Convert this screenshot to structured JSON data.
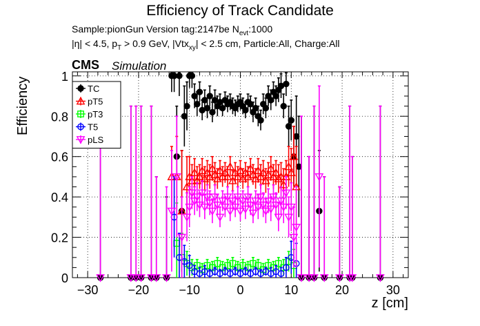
{
  "header": {
    "title": "Efficiency of Track Candidate",
    "sample_line": "Sample:pionGun   Version tag:2147be  N",
    "sample_sub": "evt",
    "sample_tail": ":1000",
    "cuts_line": "|η| < 4.5, p",
    "cuts_sub1": "T",
    "cuts_mid": " > 0.9 GeV, |Vtx",
    "cuts_sub2": "xy",
    "cuts_tail": "| < 2.5 cm, Particle:All, Charge:All",
    "cms": "CMS",
    "simulation": "Simulation"
  },
  "chart_data": {
    "type": "scatter",
    "xlabel": "z [cm]",
    "ylabel": "Efficiency",
    "xlim": [
      -33,
      33
    ],
    "ylim": [
      0,
      1.02
    ],
    "x_ticks": [
      -30,
      -20,
      -10,
      0,
      10,
      20,
      30
    ],
    "y_ticks": [
      0,
      0.2,
      0.4,
      0.6,
      0.8,
      1
    ],
    "grid": true,
    "legend_position": "top-left",
    "series": [
      {
        "name": "TC",
        "color": "#000000",
        "marker": "filled-circle",
        "points": [
          [
            -27.5,
            0,
            0.85
          ],
          [
            -21.5,
            0,
            0.85
          ],
          [
            -20.5,
            0,
            0.85
          ],
          [
            -19.5,
            0,
            0.85
          ],
          [
            -17.5,
            0,
            0.85
          ],
          [
            -16.5,
            0,
            0.5
          ],
          [
            -14.5,
            0,
            0.4
          ],
          [
            -13.5,
            1.0,
            0.08
          ],
          [
            -13.0,
            1.0,
            0.08
          ],
          [
            -12.5,
            0.6,
            0.25
          ],
          [
            -12.0,
            1.0,
            0.1
          ],
          [
            -11.5,
            0.33,
            0.3
          ],
          [
            -11.0,
            0.8,
            0.15
          ],
          [
            -10.5,
            0.85,
            0.12
          ],
          [
            -10.0,
            1.0,
            0.06
          ],
          [
            -9.5,
            1.0,
            0.06
          ],
          [
            -9.0,
            0.9,
            0.06
          ],
          [
            -8.5,
            0.86,
            0.06
          ],
          [
            -8.0,
            0.92,
            0.05
          ],
          [
            -7.5,
            0.83,
            0.05
          ],
          [
            -7.0,
            0.88,
            0.05
          ],
          [
            -6.5,
            0.84,
            0.05
          ],
          [
            -6.0,
            0.9,
            0.05
          ],
          [
            -5.5,
            0.82,
            0.05
          ],
          [
            -5.0,
            0.88,
            0.05
          ],
          [
            -4.5,
            0.85,
            0.05
          ],
          [
            -4.0,
            0.87,
            0.04
          ],
          [
            -3.5,
            0.84,
            0.04
          ],
          [
            -3.0,
            0.88,
            0.04
          ],
          [
            -2.5,
            0.86,
            0.04
          ],
          [
            -2.0,
            0.87,
            0.04
          ],
          [
            -1.5,
            0.85,
            0.04
          ],
          [
            -1.0,
            0.84,
            0.04
          ],
          [
            -0.5,
            0.86,
            0.04
          ],
          [
            0.0,
            0.87,
            0.04
          ],
          [
            0.5,
            0.85,
            0.04
          ],
          [
            1.0,
            0.83,
            0.04
          ],
          [
            1.5,
            0.87,
            0.04
          ],
          [
            2.0,
            0.86,
            0.04
          ],
          [
            2.5,
            0.82,
            0.05
          ],
          [
            3.0,
            0.84,
            0.05
          ],
          [
            3.5,
            0.8,
            0.05
          ],
          [
            4.0,
            0.78,
            0.05
          ],
          [
            4.5,
            0.86,
            0.05
          ],
          [
            5.0,
            0.84,
            0.05
          ],
          [
            5.5,
            0.9,
            0.05
          ],
          [
            6.0,
            0.88,
            0.05
          ],
          [
            6.5,
            0.92,
            0.05
          ],
          [
            7.0,
            0.9,
            0.05
          ],
          [
            7.5,
            0.93,
            0.06
          ],
          [
            8.0,
            0.95,
            0.06
          ],
          [
            8.5,
            0.85,
            0.06
          ],
          [
            9.0,
            0.96,
            0.06
          ],
          [
            9.5,
            0.75,
            0.1
          ],
          [
            10.0,
            0.78,
            0.1
          ],
          [
            10.5,
            0.6,
            0.15
          ],
          [
            11.0,
            0.7,
            0.2
          ],
          [
            11.5,
            0.55,
            0.25
          ],
          [
            12.0,
            0,
            0.8
          ],
          [
            13.5,
            0,
            0.6
          ],
          [
            14.5,
            0,
            0.85
          ],
          [
            15.5,
            0.33,
            0.3
          ],
          [
            16.5,
            0,
            0.5
          ],
          [
            19.5,
            0,
            0.45
          ],
          [
            21.5,
            0,
            0.85
          ],
          [
            22.0,
            0,
            0.6
          ],
          [
            27.5,
            0,
            0.85
          ]
        ]
      },
      {
        "name": "pT5",
        "color": "#ff0000",
        "marker": "open-triangle",
        "points": [
          [
            -13.5,
            0.5,
            0.15
          ],
          [
            -12.5,
            0.5,
            0.2
          ],
          [
            -11.5,
            0.33,
            0.3
          ],
          [
            -10.5,
            0.45,
            0.15
          ],
          [
            -10.0,
            0.5,
            0.1
          ],
          [
            -9.5,
            0.48,
            0.08
          ],
          [
            -9.0,
            0.52,
            0.07
          ],
          [
            -8.5,
            0.48,
            0.07
          ],
          [
            -8.0,
            0.5,
            0.06
          ],
          [
            -7.5,
            0.53,
            0.06
          ],
          [
            -7.0,
            0.49,
            0.06
          ],
          [
            -6.5,
            0.52,
            0.06
          ],
          [
            -6.0,
            0.5,
            0.06
          ],
          [
            -5.5,
            0.54,
            0.06
          ],
          [
            -5.0,
            0.51,
            0.06
          ],
          [
            -4.5,
            0.49,
            0.05
          ],
          [
            -4.0,
            0.53,
            0.05
          ],
          [
            -3.5,
            0.5,
            0.05
          ],
          [
            -3.0,
            0.52,
            0.05
          ],
          [
            -2.5,
            0.5,
            0.05
          ],
          [
            -2.0,
            0.55,
            0.05
          ],
          [
            -1.5,
            0.48,
            0.05
          ],
          [
            -1.0,
            0.52,
            0.05
          ],
          [
            -0.5,
            0.5,
            0.05
          ],
          [
            0.0,
            0.53,
            0.05
          ],
          [
            0.5,
            0.49,
            0.05
          ],
          [
            1.0,
            0.52,
            0.05
          ],
          [
            1.5,
            0.5,
            0.05
          ],
          [
            2.0,
            0.54,
            0.05
          ],
          [
            2.5,
            0.51,
            0.05
          ],
          [
            3.0,
            0.49,
            0.05
          ],
          [
            3.5,
            0.53,
            0.06
          ],
          [
            4.0,
            0.5,
            0.06
          ],
          [
            4.5,
            0.52,
            0.06
          ],
          [
            5.0,
            0.48,
            0.06
          ],
          [
            5.5,
            0.51,
            0.06
          ],
          [
            6.0,
            0.54,
            0.06
          ],
          [
            6.5,
            0.5,
            0.06
          ],
          [
            7.0,
            0.52,
            0.06
          ],
          [
            7.5,
            0.49,
            0.07
          ],
          [
            8.0,
            0.5,
            0.07
          ],
          [
            8.5,
            0.46,
            0.08
          ],
          [
            9.0,
            0.5,
            0.08
          ],
          [
            9.5,
            0.55,
            0.1
          ],
          [
            10.0,
            0.52,
            0.12
          ],
          [
            10.5,
            0.6,
            0.15
          ],
          [
            11.0,
            0.45,
            0.2
          ]
        ]
      },
      {
        "name": "pT3",
        "color": "#00ff00",
        "marker": "open-square",
        "points": [
          [
            -12.5,
            0.17,
            0.2
          ],
          [
            -11.5,
            0.1,
            0.12
          ],
          [
            -10.5,
            0.07,
            0.06
          ],
          [
            -9.5,
            0.05,
            0.04
          ],
          [
            -8.5,
            0.06,
            0.03
          ],
          [
            -7.5,
            0.04,
            0.03
          ],
          [
            -6.5,
            0.06,
            0.03
          ],
          [
            -5.5,
            0.05,
            0.03
          ],
          [
            -4.5,
            0.07,
            0.03
          ],
          [
            -3.5,
            0.05,
            0.03
          ],
          [
            -2.5,
            0.06,
            0.03
          ],
          [
            -1.5,
            0.07,
            0.03
          ],
          [
            -0.5,
            0.05,
            0.03
          ],
          [
            0.5,
            0.06,
            0.03
          ],
          [
            1.5,
            0.05,
            0.03
          ],
          [
            2.5,
            0.07,
            0.03
          ],
          [
            3.5,
            0.06,
            0.03
          ],
          [
            4.5,
            0.04,
            0.03
          ],
          [
            5.5,
            0.06,
            0.03
          ],
          [
            6.5,
            0.05,
            0.03
          ],
          [
            7.5,
            0.07,
            0.03
          ],
          [
            8.5,
            0.05,
            0.04
          ],
          [
            9.5,
            0.08,
            0.05
          ],
          [
            10.5,
            0.06,
            0.08
          ]
        ]
      },
      {
        "name": "T5",
        "color": "#0000ff",
        "marker": "open-circle",
        "points": [
          [
            -13.0,
            0.3,
            0.2
          ],
          [
            -12.0,
            0.1,
            0.12
          ],
          [
            -11.0,
            0.08,
            0.08
          ],
          [
            -10.0,
            0.06,
            0.05
          ],
          [
            -9.0,
            0.03,
            0.03
          ],
          [
            -8.0,
            0.02,
            0.03
          ],
          [
            -7.0,
            0.03,
            0.03
          ],
          [
            -6.0,
            0.02,
            0.02
          ],
          [
            -5.0,
            0.03,
            0.02
          ],
          [
            -4.0,
            0.02,
            0.02
          ],
          [
            -3.0,
            0.03,
            0.02
          ],
          [
            -2.0,
            0.02,
            0.02
          ],
          [
            -1.0,
            0.03,
            0.02
          ],
          [
            0.0,
            0.02,
            0.02
          ],
          [
            1.0,
            0.03,
            0.02
          ],
          [
            2.0,
            0.02,
            0.02
          ],
          [
            3.0,
            0.03,
            0.02
          ],
          [
            4.0,
            0.02,
            0.02
          ],
          [
            5.0,
            0.03,
            0.02
          ],
          [
            6.0,
            0.02,
            0.03
          ],
          [
            7.0,
            0.03,
            0.03
          ],
          [
            8.0,
            0.02,
            0.03
          ],
          [
            9.0,
            0.05,
            0.05
          ],
          [
            10.0,
            0.1,
            0.08
          ],
          [
            11.0,
            0.07,
            0.1
          ]
        ]
      },
      {
        "name": "pLS",
        "color": "#ff00ff",
        "marker": "open-triangle-down",
        "points": [
          [
            -27.5,
            0,
            0.85
          ],
          [
            -21.5,
            0,
            0.85
          ],
          [
            -20.5,
            0,
            0.85
          ],
          [
            -19.5,
            0,
            0.85
          ],
          [
            -17.5,
            0,
            0.85
          ],
          [
            -16.5,
            0,
            0.5
          ],
          [
            -14.5,
            0,
            0.45
          ],
          [
            -13.5,
            0.33,
            0.3
          ],
          [
            -12.5,
            0.5,
            0.3
          ],
          [
            -11.5,
            0.2,
            0.2
          ],
          [
            -10.5,
            0.3,
            0.12
          ],
          [
            -10.0,
            0.35,
            0.1
          ],
          [
            -9.5,
            0.42,
            0.08
          ],
          [
            -9.0,
            0.38,
            0.07
          ],
          [
            -8.5,
            0.4,
            0.07
          ],
          [
            -8.0,
            0.36,
            0.06
          ],
          [
            -7.5,
            0.42,
            0.06
          ],
          [
            -7.0,
            0.35,
            0.06
          ],
          [
            -6.5,
            0.4,
            0.06
          ],
          [
            -6.0,
            0.37,
            0.06
          ],
          [
            -5.5,
            0.33,
            0.06
          ],
          [
            -5.0,
            0.4,
            0.06
          ],
          [
            -4.5,
            0.36,
            0.05
          ],
          [
            -4.0,
            0.3,
            0.05
          ],
          [
            -3.5,
            0.38,
            0.05
          ],
          [
            -3.0,
            0.35,
            0.05
          ],
          [
            -2.5,
            0.4,
            0.05
          ],
          [
            -2.0,
            0.33,
            0.05
          ],
          [
            -1.5,
            0.38,
            0.05
          ],
          [
            -1.0,
            0.35,
            0.05
          ],
          [
            -0.5,
            0.4,
            0.05
          ],
          [
            0.0,
            0.33,
            0.05
          ],
          [
            0.5,
            0.38,
            0.05
          ],
          [
            1.0,
            0.34,
            0.05
          ],
          [
            1.5,
            0.4,
            0.05
          ],
          [
            2.0,
            0.36,
            0.05
          ],
          [
            2.5,
            0.32,
            0.05
          ],
          [
            3.0,
            0.38,
            0.05
          ],
          [
            3.5,
            0.35,
            0.06
          ],
          [
            4.0,
            0.4,
            0.06
          ],
          [
            4.5,
            0.36,
            0.06
          ],
          [
            5.0,
            0.33,
            0.06
          ],
          [
            5.5,
            0.38,
            0.06
          ],
          [
            6.0,
            0.34,
            0.06
          ],
          [
            6.5,
            0.4,
            0.06
          ],
          [
            7.0,
            0.36,
            0.06
          ],
          [
            7.5,
            0.3,
            0.07
          ],
          [
            8.0,
            0.38,
            0.07
          ],
          [
            8.5,
            0.35,
            0.08
          ],
          [
            9.0,
            0.42,
            0.08
          ],
          [
            9.5,
            0.3,
            0.1
          ],
          [
            10.0,
            0.35,
            0.12
          ],
          [
            10.5,
            0.2,
            0.15
          ],
          [
            11.0,
            0.25,
            0.2
          ],
          [
            12.0,
            0,
            0.8
          ],
          [
            13.5,
            0,
            0.6
          ],
          [
            14.5,
            0,
            0.85
          ],
          [
            15.5,
            0.5,
            0.45
          ],
          [
            16.5,
            0,
            0.5
          ],
          [
            19.5,
            0,
            0.45
          ],
          [
            21.5,
            0,
            0.85
          ],
          [
            22.0,
            0,
            0.6
          ],
          [
            27.5,
            0,
            0.85
          ]
        ]
      }
    ]
  }
}
